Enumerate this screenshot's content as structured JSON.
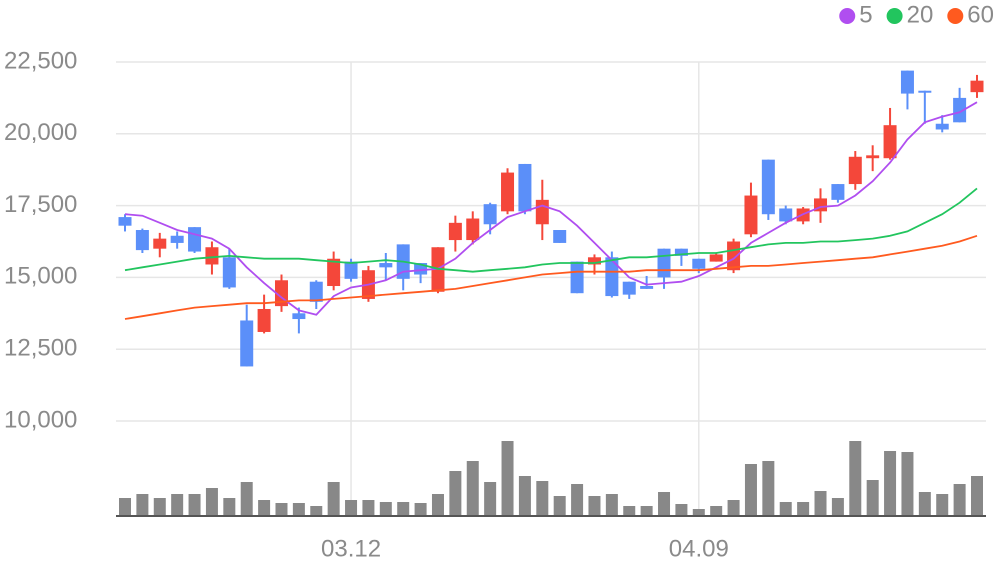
{
  "chart_data": {
    "type": "candlestick",
    "categories": [
      null,
      null,
      null,
      null,
      null,
      null,
      null,
      null,
      null,
      null,
      null,
      null,
      null,
      "03.12",
      null,
      null,
      null,
      null,
      null,
      null,
      null,
      null,
      null,
      null,
      null,
      null,
      null,
      null,
      null,
      null,
      null,
      null,
      null,
      "04.09",
      null,
      null,
      null,
      null,
      null,
      null,
      null,
      null,
      null,
      null,
      null,
      null,
      null,
      null,
      null,
      null
    ],
    "open": [
      17100,
      16650,
      16000,
      16450,
      16750,
      15450,
      15700,
      13500,
      13100,
      14000,
      13750,
      14850,
      14700,
      15550,
      14250,
      15500,
      16150,
      15500,
      14500,
      16300,
      16300,
      17550,
      17300,
      18950,
      16850,
      16650,
      15550,
      15450,
      15700,
      14850,
      14700,
      16000,
      16000,
      15650,
      15550,
      15250,
      16500,
      19100,
      17400,
      16950,
      17300,
      18250,
      18250,
      19150,
      19150,
      22200,
      21500,
      20350,
      21250,
      21450
    ],
    "high": [
      17200,
      16700,
      16550,
      16600,
      16750,
      16250,
      16000,
      14050,
      14400,
      15100,
      13950,
      14900,
      15900,
      15650,
      15400,
      15850,
      16150,
      15500,
      16050,
      17150,
      17300,
      17600,
      18800,
      18950,
      18400,
      16650,
      15550,
      15800,
      15900,
      14850,
      15050,
      16000,
      16000,
      15650,
      15850,
      16350,
      18300,
      19100,
      17500,
      17450,
      18100,
      18250,
      19400,
      19600,
      20900,
      22200,
      21500,
      20650,
      21600,
      22050
    ],
    "low": [
      16600,
      15850,
      15700,
      16000,
      15850,
      15100,
      14600,
      11900,
      13050,
      13800,
      13050,
      13900,
      14550,
      14850,
      14150,
      14900,
      14550,
      14800,
      14450,
      15900,
      16150,
      16500,
      17200,
      17200,
      16300,
      16200,
      14450,
      15100,
      14300,
      14250,
      14600,
      14600,
      15400,
      15150,
      15550,
      15150,
      16400,
      17000,
      16850,
      16850,
      16900,
      17600,
      18050,
      18700,
      19100,
      20850,
      20350,
      20050,
      20400,
      21250
    ],
    "close": [
      16800,
      15950,
      16350,
      16200,
      15900,
      16050,
      14650,
      11900,
      13900,
      14900,
      13550,
      14150,
      15650,
      14950,
      15250,
      15350,
      14950,
      15100,
      16050,
      16900,
      17050,
      16850,
      18650,
      17300,
      17700,
      16200,
      14450,
      15700,
      14350,
      14400,
      14600,
      15000,
      15750,
      15300,
      15800,
      16250,
      17850,
      17200,
      16950,
      17400,
      17750,
      17700,
      19200,
      19250,
      20300,
      21400,
      21450,
      20150,
      20400,
      21850
    ],
    "up_color": "#f4473a",
    "down_color": "#5b8ff9",
    "lines": [
      {
        "name": "5",
        "color": "#b04ef0",
        "values": [
          17200,
          17150,
          16900,
          16650,
          16500,
          16350,
          16000,
          15350,
          14800,
          14300,
          13850,
          13700,
          14350,
          14650,
          14750,
          14900,
          15200,
          15250,
          15300,
          15650,
          16200,
          16650,
          17100,
          17300,
          17500,
          17300,
          16800,
          16200,
          15600,
          15000,
          14750,
          14800,
          14850,
          15050,
          15350,
          15650,
          16200,
          16550,
          16900,
          17200,
          17450,
          17500,
          17850,
          18350,
          19000,
          19800,
          20400,
          20600,
          20750,
          21100
        ]
      },
      {
        "name": "20",
        "color": "#22c55e",
        "values": [
          15250,
          15350,
          15450,
          15550,
          15650,
          15700,
          15750,
          15700,
          15650,
          15650,
          15650,
          15600,
          15550,
          15500,
          15550,
          15600,
          15550,
          15450,
          15300,
          15250,
          15200,
          15250,
          15300,
          15350,
          15450,
          15500,
          15500,
          15500,
          15600,
          15700,
          15700,
          15750,
          15800,
          15850,
          15850,
          15950,
          16050,
          16150,
          16200,
          16200,
          16250,
          16250,
          16300,
          16350,
          16450,
          16600,
          16900,
          17200,
          17600,
          18100
        ]
      },
      {
        "name": "60",
        "color": "#ff5a1f",
        "values": [
          13550,
          13650,
          13750,
          13850,
          13950,
          14000,
          14050,
          14100,
          14100,
          14150,
          14200,
          14200,
          14250,
          14300,
          14350,
          14400,
          14450,
          14500,
          14550,
          14600,
          14700,
          14800,
          14900,
          15000,
          15100,
          15150,
          15200,
          15200,
          15200,
          15200,
          15250,
          15250,
          15250,
          15250,
          15300,
          15350,
          15400,
          15400,
          15450,
          15500,
          15550,
          15600,
          15650,
          15700,
          15800,
          15900,
          16000,
          16100,
          16250,
          16450
        ]
      }
    ],
    "volume": {
      "color": "#888888",
      "ylim": [
        0,
        100
      ],
      "values": [
        18,
        22,
        18,
        22,
        22,
        28,
        18,
        34,
        16,
        13,
        13,
        10,
        34,
        16,
        16,
        14,
        14,
        13,
        22,
        45,
        55,
        34,
        75,
        40,
        35,
        20,
        32,
        20,
        22,
        10,
        10,
        24,
        12,
        7,
        10,
        16,
        52,
        55,
        14,
        14,
        25,
        18,
        75,
        36,
        65,
        64,
        24,
        22,
        32,
        40
      ]
    },
    "ylim": [
      10000,
      22500
    ],
    "yticks": [
      {
        "value": 10000,
        "label": "10,000"
      },
      {
        "value": 12500,
        "label": "12,500"
      },
      {
        "value": 15000,
        "label": "15,000"
      },
      {
        "value": 17500,
        "label": "17,500"
      },
      {
        "value": 20000,
        "label": "20,000"
      },
      {
        "value": 22500,
        "label": "22,500"
      }
    ],
    "grid": true
  }
}
